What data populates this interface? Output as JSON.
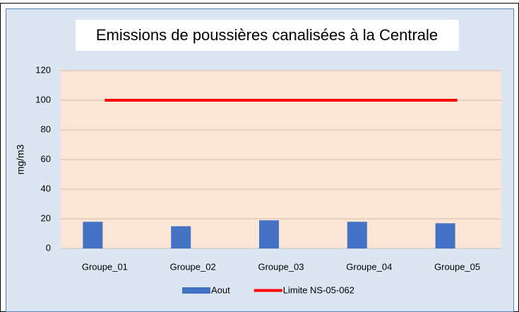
{
  "chart_data": {
    "type": "bar",
    "title": "Emissions de poussières canalisées à la Centrale",
    "y_label": "mg/m3",
    "categories": [
      "Groupe_01",
      "Groupe_02",
      "Groupe_03",
      "Groupe_04",
      "Groupe_05"
    ],
    "series": [
      {
        "name": "Aout",
        "type": "bar",
        "color": "#4472c4",
        "values": [
          18,
          15,
          19,
          18,
          17
        ]
      },
      {
        "name": "Limite NS-05-062",
        "type": "line",
        "color": "#ff0000",
        "values": [
          100,
          100,
          100,
          100,
          100
        ]
      }
    ],
    "ylim": [
      0,
      120
    ],
    "yticks": [
      0,
      20,
      40,
      60,
      80,
      100,
      120
    ],
    "grid": true,
    "legend": "bottom"
  }
}
